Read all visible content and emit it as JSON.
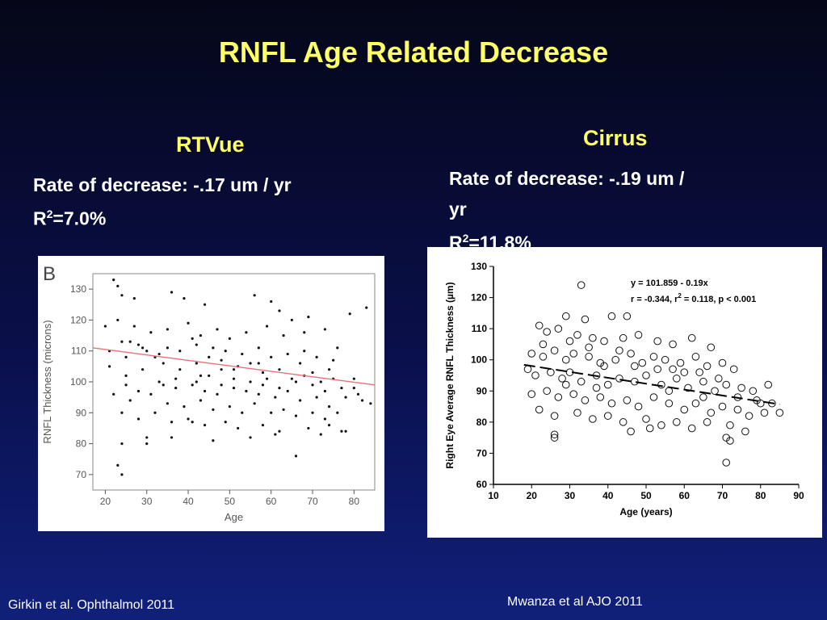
{
  "title": "RNFL Age Related Decrease",
  "left": {
    "heading": "RTVue",
    "rate": "Rate of decrease: -.17 um / yr",
    "r2_prefix": "R",
    "r2_sup": "2",
    "r2_value": "=7.0%",
    "citation": "Girkin et al. Ophthalmol 2011"
  },
  "right": {
    "heading": "Cirrus",
    "rate_line1": "Rate of decrease: -.19 um /",
    "rate_line2": "yr",
    "r2_prefix": "R",
    "r2_sup": "2",
    "r2_value": "=11.8%",
    "citation": "Mwanza et al AJO 2011"
  },
  "colors": {
    "title": "#ffff66",
    "background": "#0a0f4a",
    "regression_left": "#e8707a",
    "regression_right": "#000000"
  },
  "chart_data": [
    {
      "type": "scatter",
      "panel_label": "B",
      "xlabel": "Age",
      "ylabel": "RNFL Thickness (microns)",
      "xlim": [
        17,
        85
      ],
      "ylim": [
        65,
        135
      ],
      "xticks": [
        20,
        30,
        40,
        50,
        60,
        70,
        80
      ],
      "yticks": [
        70,
        80,
        90,
        100,
        110,
        120,
        130
      ],
      "regression": {
        "x": [
          17,
          85
        ],
        "y": [
          111,
          99
        ]
      },
      "marker": "dot",
      "points_note_generated": false,
      "points": [
        [
          22,
          133
        ],
        [
          23,
          131
        ],
        [
          24,
          128
        ],
        [
          27,
          127
        ],
        [
          36,
          129
        ],
        [
          24,
          113
        ],
        [
          26,
          113
        ],
        [
          28,
          112
        ],
        [
          30,
          110
        ],
        [
          32,
          108
        ],
        [
          34,
          106
        ],
        [
          38,
          104
        ],
        [
          42,
          106
        ],
        [
          45,
          108
        ],
        [
          48,
          104
        ],
        [
          52,
          105
        ],
        [
          55,
          106
        ],
        [
          58,
          103
        ],
        [
          62,
          104
        ],
        [
          65,
          101
        ],
        [
          68,
          102
        ],
        [
          72,
          100
        ],
        [
          75,
          101
        ],
        [
          80,
          98
        ],
        [
          21,
          105
        ],
        [
          25,
          102
        ],
        [
          29,
          104
        ],
        [
          33,
          100
        ],
        [
          37,
          98
        ],
        [
          41,
          99
        ],
        [
          44,
          97
        ],
        [
          47,
          96
        ],
        [
          51,
          98
        ],
        [
          54,
          97
        ],
        [
          57,
          96
        ],
        [
          61,
          95
        ],
        [
          64,
          97
        ],
        [
          67,
          94
        ],
        [
          71,
          95
        ],
        [
          74,
          92
        ],
        [
          78,
          95
        ],
        [
          22,
          96
        ],
        [
          26,
          94
        ],
        [
          31,
          96
        ],
        [
          35,
          93
        ],
        [
          39,
          92
        ],
        [
          43,
          94
        ],
        [
          46,
          91
        ],
        [
          50,
          92
        ],
        [
          53,
          90
        ],
        [
          56,
          93
        ],
        [
          60,
          90
        ],
        [
          63,
          91
        ],
        [
          66,
          89
        ],
        [
          70,
          90
        ],
        [
          73,
          88
        ],
        [
          76,
          90
        ],
        [
          82,
          94
        ],
        [
          24,
          90
        ],
        [
          28,
          88
        ],
        [
          32,
          90
        ],
        [
          36,
          87
        ],
        [
          40,
          88
        ],
        [
          44,
          86
        ],
        [
          49,
          87
        ],
        [
          52,
          85
        ],
        [
          58,
          86
        ],
        [
          62,
          84
        ],
        [
          69,
          85
        ],
        [
          72,
          83
        ],
        [
          77,
          84
        ],
        [
          20,
          118
        ],
        [
          23,
          120
        ],
        [
          27,
          118
        ],
        [
          31,
          116
        ],
        [
          35,
          117
        ],
        [
          40,
          119
        ],
        [
          43,
          115
        ],
        [
          47,
          117
        ],
        [
          50,
          114
        ],
        [
          54,
          116
        ],
        [
          59,
          118
        ],
        [
          63,
          115
        ],
        [
          68,
          116
        ],
        [
          73,
          117
        ],
        [
          79,
          122
        ],
        [
          83,
          124
        ],
        [
          23,
          73
        ],
        [
          24,
          70
        ],
        [
          24,
          80
        ],
        [
          30,
          82
        ],
        [
          30,
          80
        ],
        [
          36,
          82
        ],
        [
          41,
          87
        ],
        [
          46,
          81
        ],
        [
          55,
          82
        ],
        [
          61,
          83
        ],
        [
          66,
          76
        ],
        [
          74,
          86
        ],
        [
          78,
          84
        ],
        [
          84,
          93
        ],
        [
          21,
          110
        ],
        [
          25,
          108
        ],
        [
          29,
          111
        ],
        [
          33,
          109
        ],
        [
          38,
          110
        ],
        [
          42,
          112
        ],
        [
          46,
          111
        ],
        [
          49,
          110
        ],
        [
          53,
          109
        ],
        [
          57,
          111
        ],
        [
          60,
          108
        ],
        [
          64,
          109
        ],
        [
          68,
          110
        ],
        [
          71,
          108
        ],
        [
          75,
          107
        ],
        [
          80,
          101
        ],
        [
          25,
          99
        ],
        [
          28,
          97
        ],
        [
          34,
          99
        ],
        [
          37,
          101
        ],
        [
          42,
          100
        ],
        [
          45,
          102
        ],
        [
          48,
          99
        ],
        [
          51,
          101
        ],
        [
          55,
          100
        ],
        [
          58,
          99
        ],
        [
          62,
          98
        ],
        [
          66,
          100
        ],
        [
          70,
          99
        ],
        [
          73,
          97
        ],
        [
          77,
          98
        ],
        [
          81,
          96
        ],
        [
          39,
          127
        ],
        [
          44,
          125
        ],
        [
          56,
          128
        ],
        [
          60,
          126
        ],
        [
          62,
          123
        ],
        [
          65,
          120
        ],
        [
          69,
          121
        ],
        [
          35,
          111
        ],
        [
          41,
          114
        ],
        [
          48,
          107
        ],
        [
          57,
          106
        ],
        [
          67,
          106
        ],
        [
          76,
          111
        ],
        [
          43,
          102
        ],
        [
          51,
          104
        ],
        [
          59,
          101
        ],
        [
          70,
          103
        ],
        [
          74,
          104
        ]
      ]
    },
    {
      "type": "scatter",
      "xlabel": "Age (years)",
      "ylabel": "Right Eye Average RNFL Thickness (µm)",
      "xlim": [
        10,
        90
      ],
      "ylim": [
        60,
        130
      ],
      "xticks": [
        10,
        20,
        30,
        40,
        50,
        60,
        70,
        80,
        90
      ],
      "yticks": [
        60,
        70,
        80,
        90,
        100,
        110,
        120,
        130
      ],
      "equation": "y = 101.859 - 0.19x",
      "stats_prefix": "r = -0.344, r",
      "stats_sup": "2",
      "stats_suffix": " = 0.118, p < 0.001",
      "regression": {
        "x": [
          18,
          85
        ],
        "y": [
          98.4,
          85.7
        ]
      },
      "marker": "open-circle",
      "points": [
        [
          33,
          124
        ],
        [
          29,
          114
        ],
        [
          34,
          113
        ],
        [
          41,
          114
        ],
        [
          45,
          114
        ],
        [
          22,
          111
        ],
        [
          24,
          109
        ],
        [
          27,
          110
        ],
        [
          32,
          108
        ],
        [
          36,
          107
        ],
        [
          39,
          106
        ],
        [
          44,
          107
        ],
        [
          48,
          108
        ],
        [
          53,
          106
        ],
        [
          57,
          105
        ],
        [
          62,
          107
        ],
        [
          67,
          104
        ],
        [
          20,
          102
        ],
        [
          23,
          101
        ],
        [
          26,
          103
        ],
        [
          29,
          100
        ],
        [
          31,
          102
        ],
        [
          35,
          101
        ],
        [
          38,
          99
        ],
        [
          42,
          100
        ],
        [
          46,
          102
        ],
        [
          49,
          99
        ],
        [
          52,
          101
        ],
        [
          55,
          100
        ],
        [
          59,
          99
        ],
        [
          63,
          101
        ],
        [
          66,
          98
        ],
        [
          70,
          99
        ],
        [
          73,
          97
        ],
        [
          19,
          97
        ],
        [
          21,
          95
        ],
        [
          25,
          96
        ],
        [
          28,
          94
        ],
        [
          30,
          96
        ],
        [
          33,
          93
        ],
        [
          37,
          95
        ],
        [
          40,
          92
        ],
        [
          43,
          94
        ],
        [
          47,
          93
        ],
        [
          50,
          95
        ],
        [
          54,
          92
        ],
        [
          58,
          94
        ],
        [
          61,
          91
        ],
        [
          65,
          93
        ],
        [
          68,
          90
        ],
        [
          71,
          92
        ],
        [
          75,
          91
        ],
        [
          78,
          90
        ],
        [
          82,
          92
        ],
        [
          20,
          89
        ],
        [
          24,
          90
        ],
        [
          27,
          88
        ],
        [
          31,
          89
        ],
        [
          34,
          87
        ],
        [
          38,
          88
        ],
        [
          41,
          86
        ],
        [
          45,
          87
        ],
        [
          48,
          85
        ],
        [
          52,
          88
        ],
        [
          56,
          86
        ],
        [
          60,
          84
        ],
        [
          63,
          86
        ],
        [
          67,
          83
        ],
        [
          70,
          85
        ],
        [
          74,
          84
        ],
        [
          77,
          82
        ],
        [
          81,
          83
        ],
        [
          85,
          83
        ],
        [
          22,
          84
        ],
        [
          26,
          82
        ],
        [
          32,
          83
        ],
        [
          36,
          81
        ],
        [
          40,
          82
        ],
        [
          44,
          80
        ],
        [
          50,
          81
        ],
        [
          54,
          79
        ],
        [
          58,
          80
        ],
        [
          62,
          78
        ],
        [
          66,
          80
        ],
        [
          72,
          79
        ],
        [
          76,
          77
        ],
        [
          26,
          76
        ],
        [
          26,
          75
        ],
        [
          46,
          77
        ],
        [
          51,
          78
        ],
        [
          71,
          75
        ],
        [
          72,
          74
        ],
        [
          71,
          67
        ],
        [
          35,
          104
        ],
        [
          43,
          103
        ],
        [
          57,
          97
        ],
        [
          64,
          96
        ],
        [
          69,
          94
        ],
        [
          79,
          87
        ],
        [
          83,
          86
        ],
        [
          23,
          105
        ],
        [
          30,
          106
        ],
        [
          47,
          98
        ],
        [
          53,
          97
        ],
        [
          60,
          96
        ],
        [
          74,
          88
        ],
        [
          80,
          86
        ],
        [
          39,
          98
        ],
        [
          56,
          90
        ],
        [
          65,
          88
        ],
        [
          29,
          92
        ],
        [
          37,
          91
        ]
      ]
    }
  ]
}
